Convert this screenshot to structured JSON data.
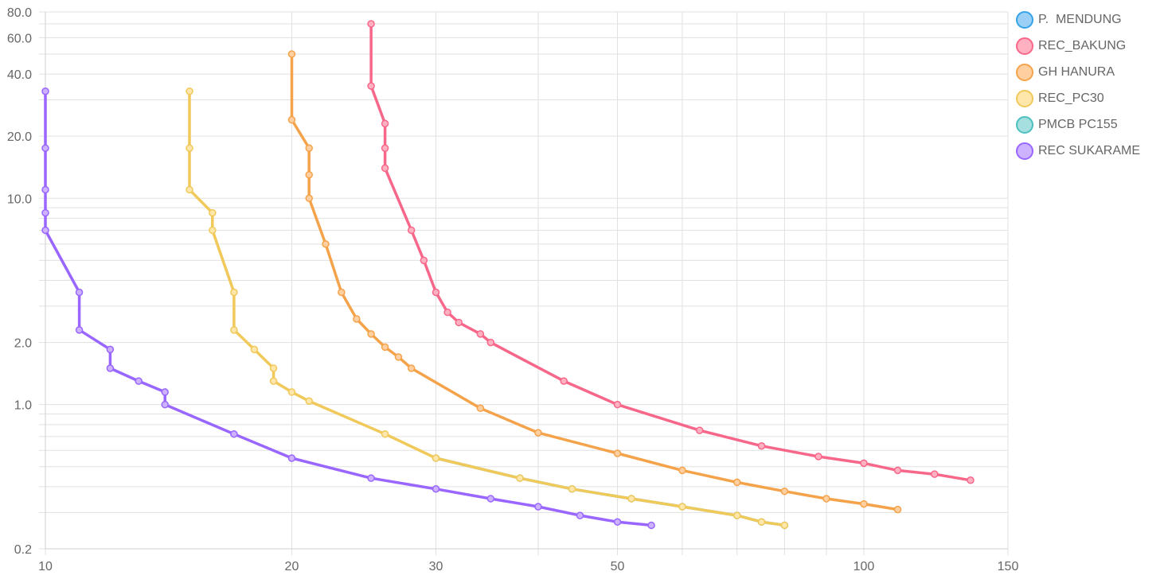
{
  "chart_data": {
    "type": "line",
    "x_scale": "log",
    "y_scale": "log",
    "xlim": [
      10,
      150
    ],
    "ylim": [
      0.2,
      80
    ],
    "x_ticks": [
      {
        "value": 10,
        "label": "10"
      },
      {
        "value": 20,
        "label": "20"
      },
      {
        "value": 30,
        "label": "30"
      },
      {
        "value": 50,
        "label": "50"
      },
      {
        "value": 100,
        "label": "100"
      },
      {
        "value": 150,
        "label": "150"
      }
    ],
    "x_gridlines": [
      10,
      20,
      30,
      40,
      50,
      60,
      70,
      80,
      90,
      100,
      150
    ],
    "y_ticks": [
      {
        "value": 0.2,
        "label": "0.2"
      },
      {
        "value": 1,
        "label": "1.0"
      },
      {
        "value": 2,
        "label": "2.0"
      },
      {
        "value": 10,
        "label": "10.0"
      },
      {
        "value": 20,
        "label": "20.0"
      },
      {
        "value": 40,
        "label": "40.0"
      },
      {
        "value": 60,
        "label": "60.0"
      },
      {
        "value": 80,
        "label": "80.0"
      }
    ],
    "y_gridlines": [
      0.2,
      0.3,
      0.4,
      0.5,
      0.6,
      0.7,
      0.8,
      0.9,
      1,
      2,
      3,
      4,
      5,
      6,
      7,
      8,
      9,
      10,
      20,
      30,
      40,
      50,
      60,
      70,
      80
    ],
    "grid": true,
    "legend_position": "right",
    "series": [
      {
        "name": "P.  MENDUNG",
        "color": "#36a2eb",
        "fill": "#9ad0f5",
        "points": []
      },
      {
        "name": "REC_BAKUNG",
        "color": "#f7678a",
        "fill": "#ffb1c1",
        "points": [
          [
            25,
            70
          ],
          [
            25,
            35
          ],
          [
            26,
            23
          ],
          [
            26,
            17.5
          ],
          [
            26,
            14
          ],
          [
            28,
            7
          ],
          [
            29,
            5
          ],
          [
            30,
            3.5
          ],
          [
            31,
            2.8
          ],
          [
            32,
            2.5
          ],
          [
            34,
            2.2
          ],
          [
            35,
            2.0
          ],
          [
            43,
            1.3
          ],
          [
            50,
            1.0
          ],
          [
            63,
            0.75
          ],
          [
            75,
            0.63
          ],
          [
            88,
            0.56
          ],
          [
            100,
            0.52
          ],
          [
            110,
            0.48
          ],
          [
            122,
            0.46
          ],
          [
            135,
            0.43
          ]
        ]
      },
      {
        "name": "GH HANURA",
        "color": "#f5a34b",
        "fill": "#ffcf9f",
        "points": [
          [
            20,
            50
          ],
          [
            20,
            24
          ],
          [
            21,
            17.5
          ],
          [
            21,
            13
          ],
          [
            21,
            10
          ],
          [
            22,
            6
          ],
          [
            23,
            3.5
          ],
          [
            24,
            2.6
          ],
          [
            25,
            2.2
          ],
          [
            26,
            1.9
          ],
          [
            27,
            1.7
          ],
          [
            28,
            1.5
          ],
          [
            34,
            0.96
          ],
          [
            40,
            0.73
          ],
          [
            50,
            0.58
          ],
          [
            60,
            0.48
          ],
          [
            70,
            0.42
          ],
          [
            80,
            0.38
          ],
          [
            90,
            0.35
          ],
          [
            100,
            0.33
          ],
          [
            110,
            0.31
          ]
        ]
      },
      {
        "name": "REC_PC30",
        "color": "#f0c95a",
        "fill": "#ffe6aa",
        "points": [
          [
            15,
            33
          ],
          [
            15,
            17.5
          ],
          [
            15,
            11
          ],
          [
            16,
            8.5
          ],
          [
            16,
            7
          ],
          [
            17,
            3.5
          ],
          [
            17,
            2.3
          ],
          [
            18,
            1.85
          ],
          [
            19,
            1.5
          ],
          [
            19,
            1.3
          ],
          [
            20,
            1.15
          ],
          [
            21,
            1.04
          ],
          [
            26,
            0.72
          ],
          [
            30,
            0.55
          ],
          [
            38,
            0.44
          ],
          [
            44,
            0.39
          ],
          [
            52,
            0.35
          ],
          [
            60,
            0.32
          ],
          [
            70,
            0.29
          ],
          [
            75,
            0.27
          ],
          [
            80,
            0.26
          ]
        ]
      },
      {
        "name": "PMCB PC155",
        "color": "#4bc0c0",
        "fill": "#a5dfdf",
        "points": [
          [
            30,
            0.55
          ],
          [
            38,
            0.44
          ],
          [
            44,
            0.39
          ],
          [
            52,
            0.35
          ],
          [
            60,
            0.32
          ],
          [
            70,
            0.29
          ],
          [
            75,
            0.27
          ],
          [
            80,
            0.26
          ]
        ]
      },
      {
        "name": "REC SUKARAME",
        "color": "#9966ff",
        "fill": "#ccb2ff",
        "points": [
          [
            10,
            33
          ],
          [
            10,
            17.5
          ],
          [
            10,
            11
          ],
          [
            10,
            8.5
          ],
          [
            10,
            7
          ],
          [
            11,
            3.5
          ],
          [
            11,
            2.3
          ],
          [
            12,
            1.85
          ],
          [
            12,
            1.5
          ],
          [
            13,
            1.3
          ],
          [
            14,
            1.15
          ],
          [
            14,
            1.0
          ],
          [
            17,
            0.72
          ],
          [
            20,
            0.55
          ],
          [
            25,
            0.44
          ],
          [
            30,
            0.39
          ],
          [
            35,
            0.35
          ],
          [
            40,
            0.32
          ],
          [
            45,
            0.29
          ],
          [
            50,
            0.27
          ],
          [
            55,
            0.26
          ]
        ]
      }
    ]
  }
}
